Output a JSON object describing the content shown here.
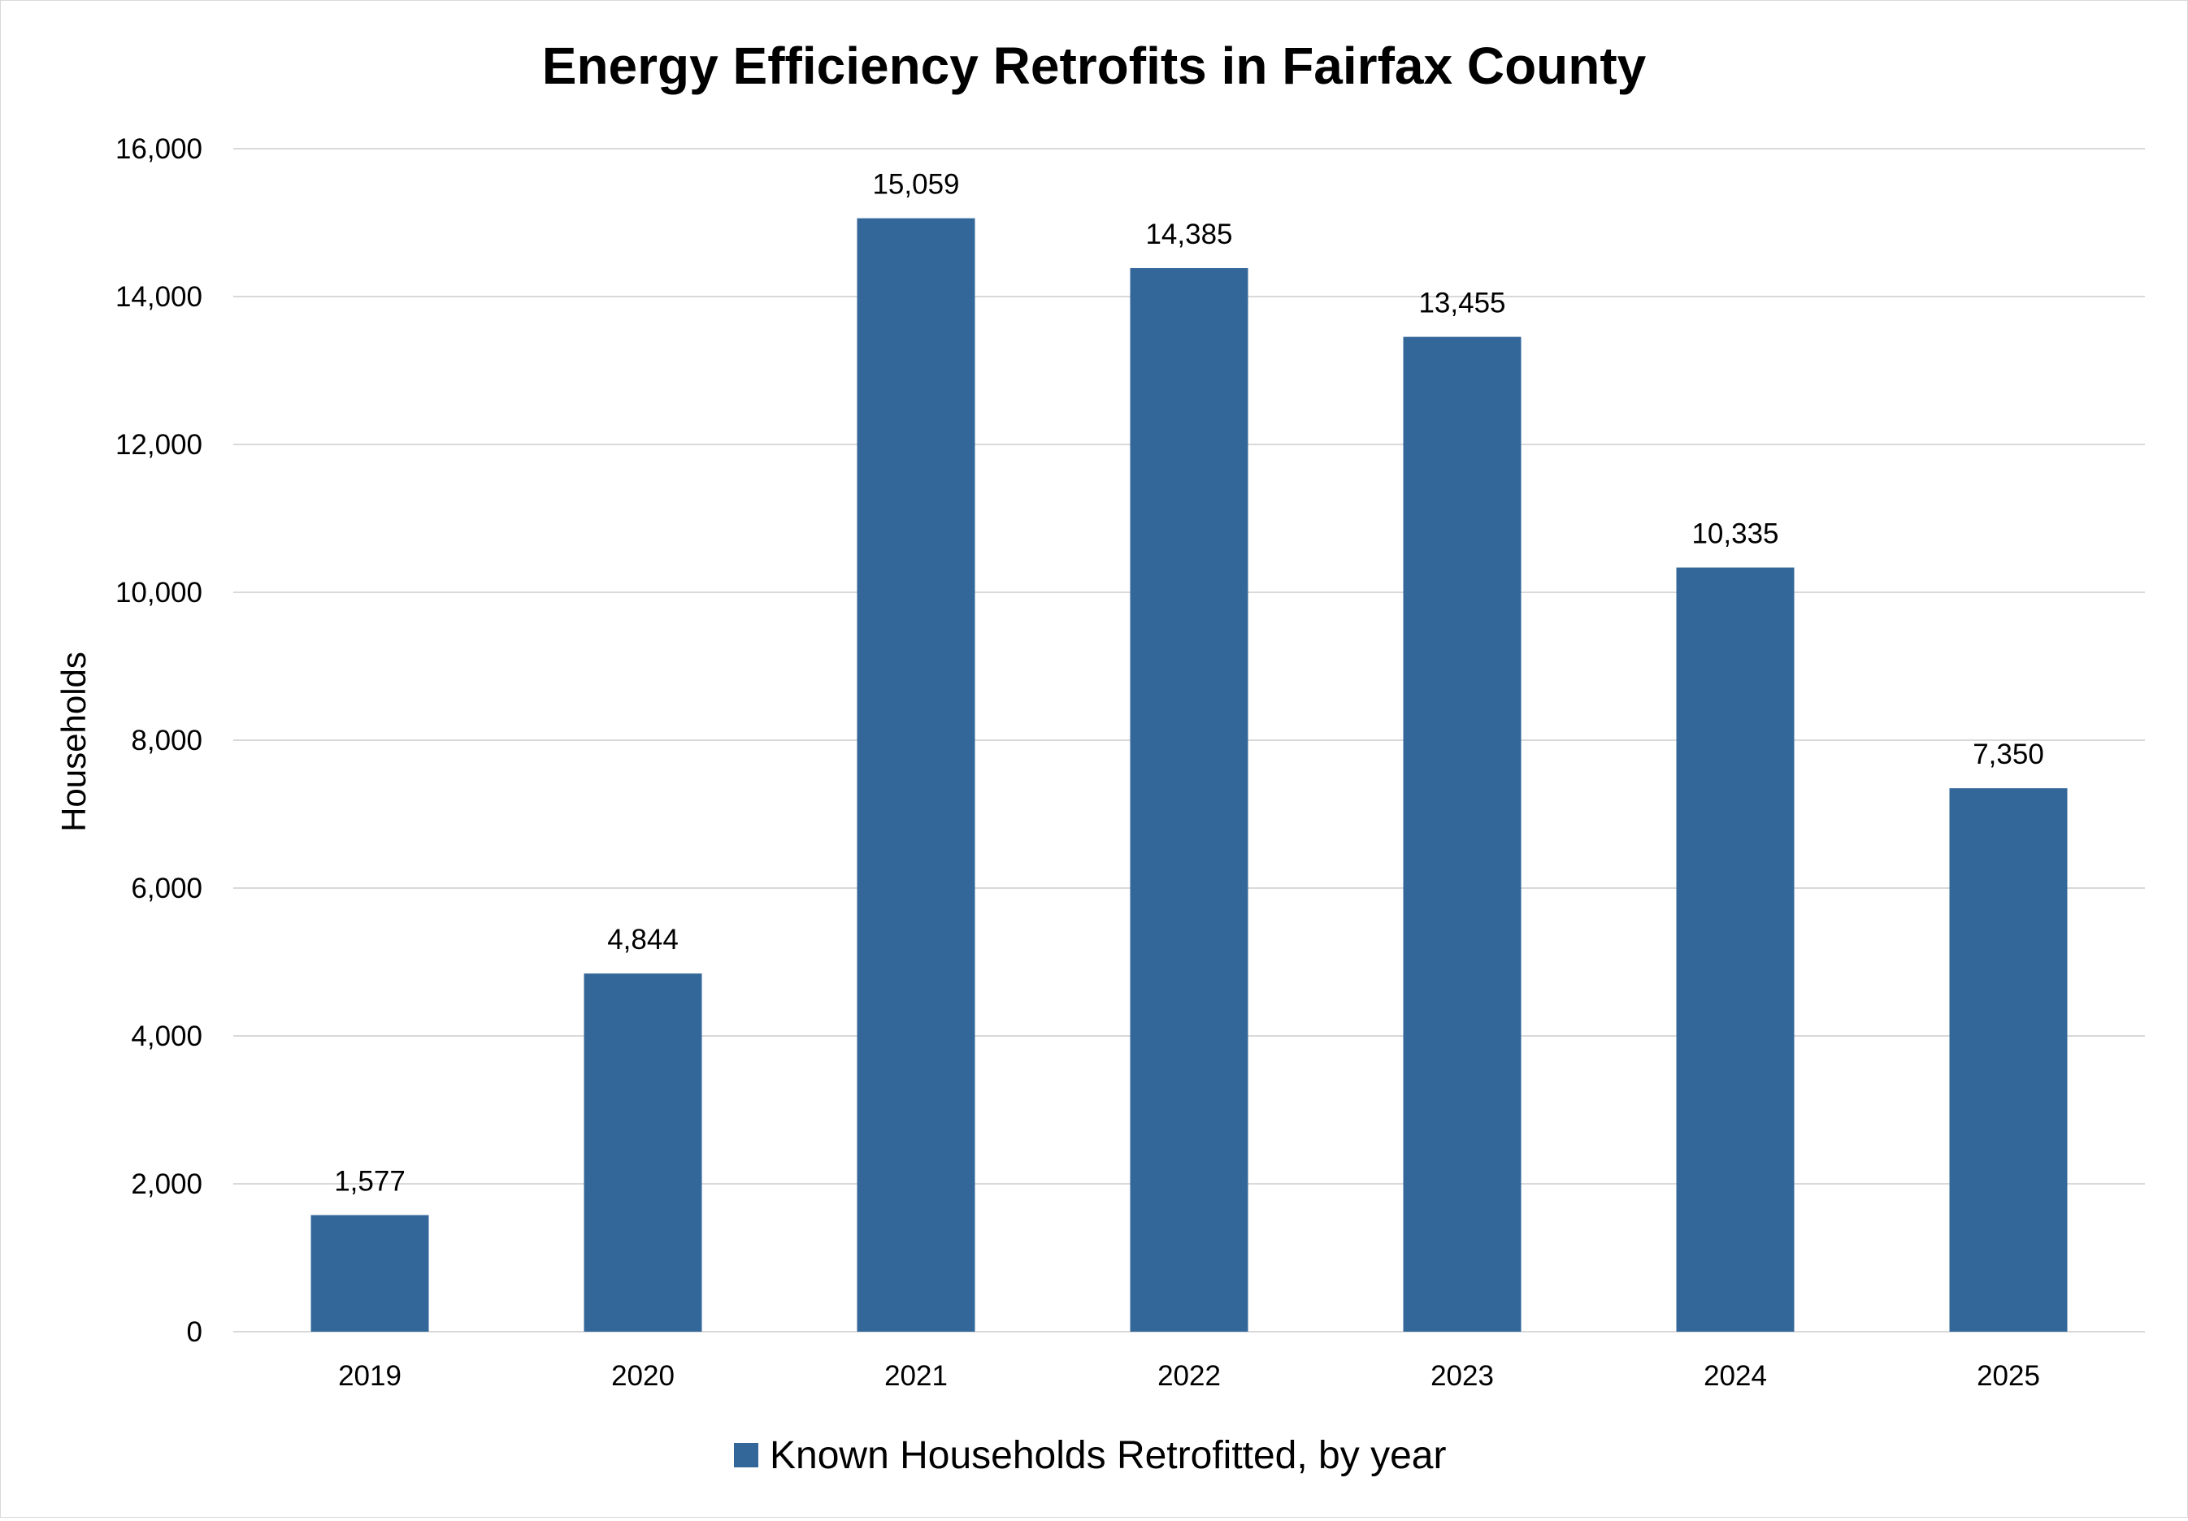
{
  "chart_data": {
    "type": "bar",
    "title": "Energy Efficiency Retrofits in Fairfax County",
    "xlabel": "",
    "ylabel": "Households",
    "categories": [
      "2019",
      "2020",
      "2021",
      "2022",
      "2023",
      "2024",
      "2025"
    ],
    "series": [
      {
        "name": "Known Households Retrofitted, by year",
        "values": [
          1577,
          4844,
          15059,
          14385,
          13455,
          10335,
          7350
        ],
        "value_labels": [
          "1,577",
          "4,844",
          "15,059",
          "14,385",
          "13,455",
          "10,335",
          "7,350"
        ],
        "color": "#336699"
      }
    ],
    "ylim": [
      0,
      16000
    ],
    "y_ticks": [
      0,
      2000,
      4000,
      6000,
      8000,
      10000,
      12000,
      14000,
      16000
    ],
    "y_tick_labels": [
      "0",
      "2,000",
      "4,000",
      "6,000",
      "8,000",
      "10,000",
      "12,000",
      "14,000",
      "16,000"
    ],
    "grid": true,
    "legend_position": "bottom"
  },
  "colors": {
    "bar": "#336699",
    "grid": "#d9d9d9",
    "text": "#000000",
    "background": "#ffffff"
  }
}
